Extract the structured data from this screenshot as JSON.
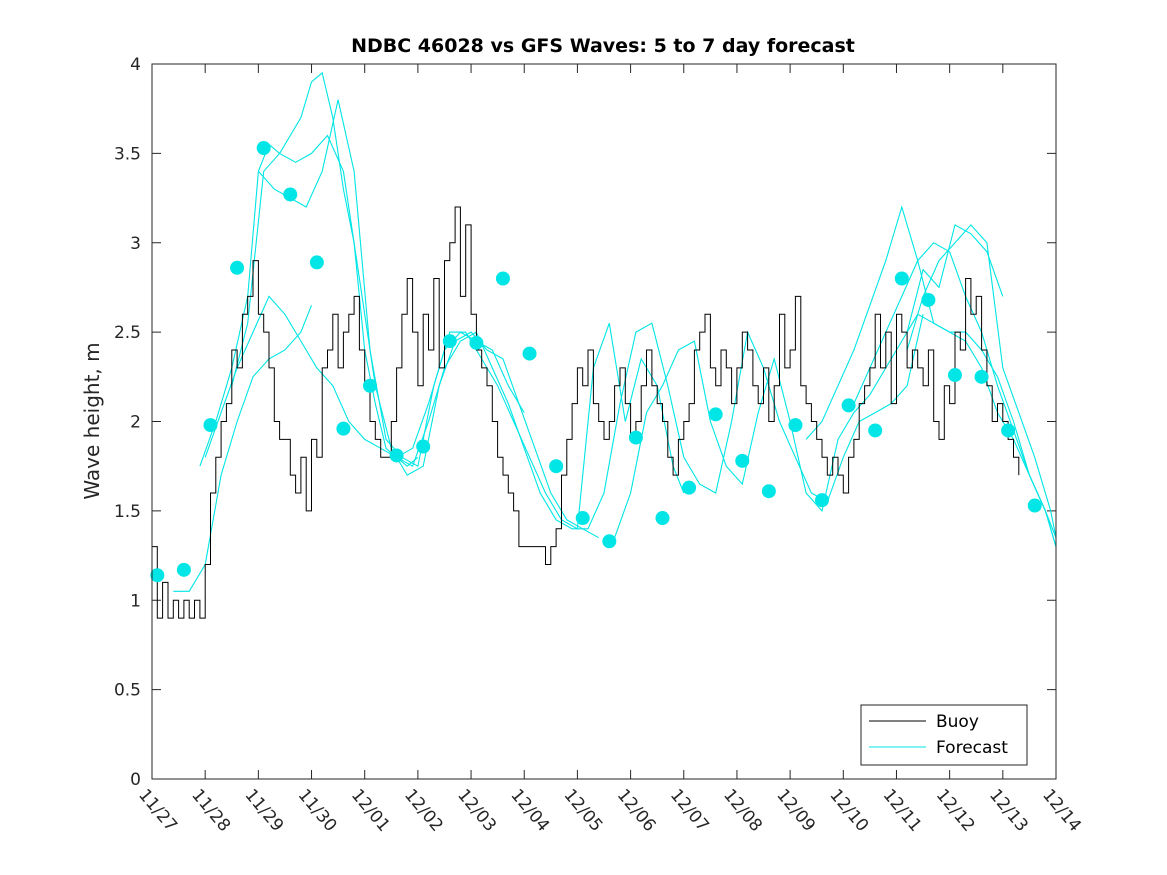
{
  "chart_data": {
    "type": "line",
    "title": "NDBC 46028 vs GFS Waves: 5 to 7 day forecast",
    "xlabel": "",
    "ylabel": "Wave height, m",
    "xlim": [
      0,
      17
    ],
    "ylim": [
      0,
      4
    ],
    "grid": false,
    "x_tick_labels": [
      "11/27",
      "11/28",
      "11/29",
      "11/30",
      "12/01",
      "12/02",
      "12/03",
      "12/04",
      "12/05",
      "12/06",
      "12/07",
      "12/08",
      "12/09",
      "12/10",
      "12/11",
      "12/12",
      "12/13",
      "12/14"
    ],
    "y_ticks": [
      0,
      0.5,
      1,
      1.5,
      2,
      2.5,
      3,
      3.5,
      4
    ],
    "y_tick_labels": [
      "0",
      "0.5",
      "1",
      "1.5",
      "2",
      "2.5",
      "3",
      "3.5",
      "4"
    ],
    "legend": {
      "position": "bottom-right",
      "entries": [
        "Buoy",
        "Forecast"
      ]
    },
    "colors": {
      "buoy": "#000000",
      "forecast": "#00e5e5",
      "markers": "#00e5e5"
    },
    "series": [
      {
        "name": "Buoy",
        "x": [
          0.0,
          0.1,
          0.2,
          0.3,
          0.4,
          0.5,
          0.6,
          0.7,
          0.8,
          0.9,
          1.0,
          1.1,
          1.2,
          1.3,
          1.4,
          1.5,
          1.6,
          1.7,
          1.8,
          1.9,
          2.0,
          2.1,
          2.2,
          2.3,
          2.4,
          2.5,
          2.6,
          2.7,
          2.8,
          2.9,
          3.0,
          3.1,
          3.2,
          3.3,
          3.4,
          3.5,
          3.6,
          3.7,
          3.8,
          3.9,
          4.0,
          4.1,
          4.2,
          4.3,
          4.4,
          4.5,
          4.6,
          4.7,
          4.8,
          4.9,
          5.0,
          5.1,
          5.2,
          5.3,
          5.4,
          5.5,
          5.6,
          5.7,
          5.8,
          5.9,
          6.0,
          6.1,
          6.2,
          6.3,
          6.4,
          6.5,
          6.6,
          6.7,
          6.8,
          6.9,
          7.0,
          7.1,
          7.2,
          7.3,
          7.4,
          7.5,
          7.6,
          7.7,
          7.8,
          7.9,
          8.0,
          8.1,
          8.2,
          8.3,
          8.4,
          8.5,
          8.6,
          8.7,
          8.8,
          8.9,
          9.0,
          9.1,
          9.2,
          9.3,
          9.4,
          9.5,
          9.6,
          9.7,
          9.8,
          9.9,
          10.0,
          10.1,
          10.2,
          10.3,
          10.4,
          10.5,
          10.6,
          10.7,
          10.8,
          10.9,
          11.0,
          11.1,
          11.2,
          11.3,
          11.4,
          11.5,
          11.6,
          11.7,
          11.8,
          11.9,
          12.0,
          12.1,
          12.2,
          12.3,
          12.4,
          12.5,
          12.6,
          12.7,
          12.8,
          12.9,
          13.0,
          13.1,
          13.2,
          13.3,
          13.4,
          13.5,
          13.6,
          13.7,
          13.8,
          13.9,
          14.0,
          14.1,
          14.2,
          14.3,
          14.4,
          14.5,
          14.6,
          14.7,
          14.8,
          14.9,
          15.0,
          15.1,
          15.2,
          15.3,
          15.4,
          15.5,
          15.6,
          15.7,
          15.8,
          15.9,
          16.0,
          16.1,
          16.2,
          16.3
        ],
        "values": [
          1.3,
          0.9,
          1.1,
          0.9,
          1.0,
          0.9,
          1.0,
          0.9,
          1.0,
          0.9,
          1.2,
          1.6,
          1.8,
          2.0,
          2.1,
          2.4,
          2.3,
          2.6,
          2.7,
          2.9,
          2.6,
          2.5,
          2.3,
          2.0,
          1.9,
          1.9,
          1.7,
          1.6,
          1.8,
          1.5,
          1.9,
          1.8,
          2.3,
          2.4,
          2.6,
          2.3,
          2.5,
          2.6,
          2.7,
          2.4,
          2.2,
          2.0,
          1.9,
          1.8,
          1.8,
          2.0,
          2.3,
          2.6,
          2.8,
          2.5,
          2.2,
          2.6,
          2.4,
          2.8,
          2.3,
          2.9,
          3.0,
          3.2,
          2.7,
          3.1,
          2.6,
          2.4,
          2.3,
          2.2,
          2.0,
          1.8,
          1.7,
          1.6,
          1.5,
          1.3,
          1.3,
          1.3,
          1.3,
          1.3,
          1.2,
          1.3,
          1.4,
          1.7,
          1.9,
          2.1,
          2.3,
          2.2,
          2.4,
          2.1,
          2.0,
          1.9,
          2.0,
          2.2,
          2.3,
          2.1,
          1.9,
          2.0,
          2.2,
          2.4,
          2.2,
          2.1,
          2.0,
          1.8,
          1.7,
          1.9,
          2.0,
          2.1,
          2.4,
          2.5,
          2.6,
          2.3,
          2.2,
          2.4,
          2.3,
          2.1,
          2.3,
          2.5,
          2.4,
          2.2,
          2.1,
          2.3,
          2.0,
          2.2,
          2.6,
          2.3,
          2.4,
          2.7,
          2.2,
          2.1,
          2.0,
          1.9,
          1.8,
          1.7,
          1.8,
          1.7,
          1.6,
          1.8,
          1.9,
          2.1,
          2.2,
          2.3,
          2.6,
          2.3,
          2.5,
          2.1,
          2.6,
          2.5,
          2.3,
          2.4,
          2.3,
          2.2,
          2.4,
          2.0,
          1.9,
          2.2,
          2.1,
          2.5,
          2.4,
          2.8,
          2.6,
          2.7,
          2.4,
          2.2,
          2.0,
          2.1,
          2.0,
          1.9,
          1.8,
          1.7
        ]
      },
      {
        "name": "Forecast 1",
        "x": [
          0.4,
          0.7,
          1.0,
          1.3,
          1.6,
          1.9,
          2.2,
          2.5,
          2.8,
          3.0
        ],
        "values": [
          1.05,
          1.05,
          1.2,
          1.7,
          2.0,
          2.25,
          2.35,
          2.4,
          2.5,
          2.65
        ]
      },
      {
        "name": "Forecast 2",
        "x": [
          0.9,
          1.2,
          1.5,
          1.8,
          2.0,
          2.2,
          2.4,
          2.6,
          2.8,
          3.0,
          3.2,
          3.4,
          3.6,
          3.8,
          4.0,
          4.2,
          4.4,
          4.6,
          4.8,
          5.0
        ],
        "values": [
          1.75,
          2.0,
          2.3,
          2.7,
          3.4,
          3.55,
          3.5,
          3.6,
          3.7,
          3.9,
          3.95,
          3.7,
          3.3,
          3.0,
          2.4,
          2.1,
          1.85,
          1.8,
          1.75,
          1.8
        ]
      },
      {
        "name": "Forecast 3",
        "x": [
          1.0,
          1.3,
          1.6,
          1.9,
          2.2,
          2.5,
          2.8,
          3.1,
          3.4,
          3.7,
          4.0,
          4.3,
          4.6,
          4.9,
          5.2,
          5.5,
          5.8,
          6.1,
          6.4,
          6.7,
          7.0
        ],
        "values": [
          1.8,
          2.05,
          2.3,
          2.5,
          2.7,
          2.6,
          2.45,
          2.3,
          2.2,
          2.0,
          1.9,
          1.85,
          1.8,
          1.85,
          2.1,
          2.4,
          2.5,
          2.45,
          2.4,
          2.2,
          2.05
        ]
      },
      {
        "name": "Forecast 4",
        "x": [
          1.5,
          1.8,
          2.1,
          2.4,
          2.7,
          3.0,
          3.3,
          3.6,
          3.9,
          4.2,
          4.5,
          4.8,
          5.1,
          5.4,
          5.7,
          6.0,
          6.3,
          6.6,
          6.9,
          7.2,
          7.5,
          7.8,
          8.1,
          8.4
        ],
        "values": [
          2.2,
          2.55,
          3.4,
          3.5,
          3.45,
          3.5,
          3.6,
          3.4,
          2.8,
          2.2,
          1.85,
          1.7,
          1.75,
          2.2,
          2.45,
          2.5,
          2.4,
          2.35,
          2.1,
          1.85,
          1.6,
          1.45,
          1.4,
          1.35
        ]
      },
      {
        "name": "Forecast 5",
        "x": [
          2.0,
          2.3,
          2.6,
          2.9,
          3.2,
          3.5,
          3.8,
          4.1,
          4.4,
          4.7,
          5.0,
          5.3,
          5.6,
          5.9,
          6.2,
          6.5,
          6.8,
          7.1,
          7.4,
          7.7,
          8.0,
          8.3,
          8.6,
          8.9,
          9.2,
          9.5,
          9.8,
          10.0
        ],
        "values": [
          3.4,
          3.3,
          3.25,
          3.2,
          3.4,
          3.8,
          3.4,
          2.4,
          1.9,
          1.8,
          1.75,
          2.2,
          2.5,
          2.5,
          2.35,
          2.2,
          2.0,
          1.8,
          1.6,
          1.45,
          1.4,
          2.3,
          2.55,
          2.0,
          2.35,
          2.2,
          1.75,
          1.6
        ]
      },
      {
        "name": "Forecast 6",
        "x": [
          4.6,
          4.9,
          5.2,
          5.5,
          5.8,
          6.1,
          6.4,
          6.7,
          7.0,
          7.3,
          7.6,
          7.9,
          8.2,
          8.5,
          8.8,
          9.1,
          9.4,
          9.7,
          10.0,
          10.3,
          10.6,
          10.9,
          11.2,
          11.5,
          11.8,
          12.1,
          12.4,
          12.7,
          13.0,
          13.3,
          13.6,
          13.9,
          14.2,
          14.5
        ],
        "values": [
          1.8,
          1.75,
          2.0,
          2.3,
          2.45,
          2.5,
          2.3,
          2.1,
          1.85,
          1.6,
          1.45,
          1.4,
          1.4,
          1.6,
          2.1,
          2.5,
          2.55,
          2.2,
          1.8,
          1.65,
          1.6,
          2.0,
          2.5,
          2.3,
          2.0,
          1.8,
          1.6,
          1.55,
          1.8,
          2.0,
          2.05,
          2.1,
          2.2,
          2.6
        ]
      },
      {
        "name": "Forecast 7",
        "x": [
          8.7,
          9.0,
          9.3,
          9.6,
          9.9,
          10.2,
          10.5,
          10.8,
          11.1,
          11.4,
          11.7,
          12.0,
          12.3,
          12.6,
          12.9,
          13.2,
          13.5,
          13.8,
          14.1,
          14.4,
          14.7,
          15.0,
          15.3,
          15.6,
          15.9,
          16.2,
          16.5,
          16.8,
          17.0
        ],
        "values": [
          1.35,
          1.6,
          2.05,
          2.2,
          2.4,
          2.45,
          2.0,
          1.75,
          1.65,
          2.05,
          2.35,
          2.0,
          1.6,
          1.5,
          1.9,
          2.05,
          2.15,
          2.3,
          2.45,
          2.6,
          2.55,
          2.5,
          2.45,
          2.3,
          2.05,
          1.9,
          1.7,
          1.5,
          1.35
        ]
      },
      {
        "name": "Forecast 8",
        "x": [
          12.3,
          12.6,
          12.9,
          13.2,
          13.5,
          13.8,
          14.1,
          14.4,
          14.7,
          15.0,
          15.3,
          15.6,
          15.9,
          16.2,
          16.5,
          16.8,
          17.0
        ],
        "values": [
          1.9,
          2.0,
          2.2,
          2.4,
          2.65,
          2.9,
          3.2,
          2.9,
          2.55,
          2.5,
          2.5,
          2.4,
          2.25,
          2.0,
          1.7,
          1.5,
          1.3
        ]
      },
      {
        "name": "Forecast 9",
        "x": [
          13.2,
          13.5,
          13.8,
          14.1,
          14.4,
          14.7,
          15.0,
          15.3,
          15.6,
          15.9,
          16.2,
          16.5,
          16.8,
          17.0
        ],
        "values": [
          2.1,
          2.3,
          2.5,
          2.7,
          2.9,
          3.0,
          2.95,
          2.7,
          2.5,
          2.2,
          1.95,
          1.7,
          1.5,
          1.3
        ]
      },
      {
        "name": "Forecast 10",
        "x": [
          14.2,
          14.5,
          14.8,
          15.1,
          15.4,
          15.7,
          16.0,
          16.3,
          16.6,
          16.9,
          17.0
        ],
        "values": [
          2.4,
          2.7,
          2.9,
          3.0,
          3.1,
          3.0,
          2.3,
          2.05,
          1.8,
          1.5,
          1.35
        ]
      },
      {
        "name": "Forecast 11",
        "x": [
          14.2,
          14.5,
          14.8,
          15.1,
          15.4,
          15.7,
          16.0
        ],
        "values": [
          2.5,
          2.85,
          2.75,
          3.1,
          3.05,
          2.95,
          2.7
        ]
      }
    ],
    "markers": {
      "x": [
        0.1,
        0.6,
        1.1,
        1.6,
        2.1,
        2.6,
        3.1,
        3.6,
        4.1,
        4.6,
        5.1,
        5.6,
        6.1,
        6.6,
        7.1,
        7.6,
        8.1,
        8.6,
        9.1,
        9.6,
        10.1,
        10.6,
        11.1,
        11.6,
        12.1,
        12.6,
        13.1,
        13.6,
        14.1,
        14.6,
        15.1,
        15.6,
        16.1,
        16.6
      ],
      "values": [
        1.14,
        1.17,
        1.98,
        2.86,
        3.53,
        3.27,
        2.89,
        1.96,
        2.2,
        1.81,
        1.86,
        2.45,
        2.44,
        2.8,
        2.38,
        1.75,
        1.46,
        1.33,
        1.91,
        1.46,
        1.63,
        2.04,
        1.78,
        1.61,
        1.98,
        1.56,
        2.09,
        1.95,
        2.8,
        2.68,
        2.26,
        2.25,
        1.95,
        1.53
      ]
    }
  }
}
